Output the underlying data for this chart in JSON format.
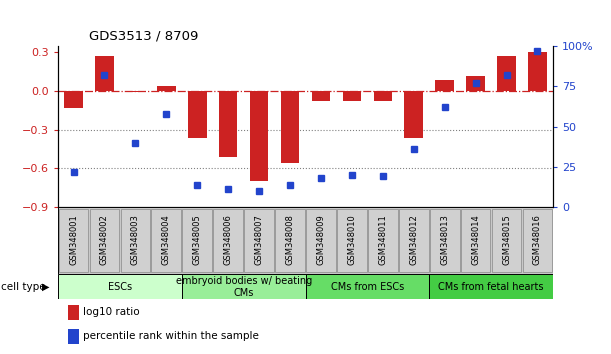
{
  "title": "GDS3513 / 8709",
  "samples": [
    "GSM348001",
    "GSM348002",
    "GSM348003",
    "GSM348004",
    "GSM348005",
    "GSM348006",
    "GSM348007",
    "GSM348008",
    "GSM348009",
    "GSM348010",
    "GSM348011",
    "GSM348012",
    "GSM348013",
    "GSM348014",
    "GSM348015",
    "GSM348016"
  ],
  "log10_ratio": [
    -0.13,
    0.27,
    -0.01,
    0.04,
    -0.36,
    -0.51,
    -0.7,
    -0.56,
    -0.08,
    -0.08,
    -0.08,
    -0.36,
    0.09,
    0.12,
    0.27,
    0.3
  ],
  "percentile_rank": [
    22,
    82,
    40,
    58,
    14,
    11,
    10,
    14,
    18,
    20,
    19,
    36,
    62,
    77,
    82,
    97
  ],
  "bar_color": "#cc2222",
  "dot_color": "#2244cc",
  "ylim_left": [
    -0.9,
    0.35
  ],
  "ylim_right": [
    0,
    100
  ],
  "yticks_left": [
    -0.9,
    -0.6,
    -0.3,
    0.0,
    0.3
  ],
  "yticks_right": [
    0,
    25,
    50,
    75,
    100
  ],
  "hline_y": 0.0,
  "dotted_lines": [
    -0.3,
    -0.6
  ],
  "cell_type_groups": [
    {
      "label": "ESCs",
      "start": 0,
      "end": 3,
      "color": "#ccffcc"
    },
    {
      "label": "embryoid bodies w/ beating\nCMs",
      "start": 4,
      "end": 7,
      "color": "#99ee99"
    },
    {
      "label": "CMs from ESCs",
      "start": 8,
      "end": 11,
      "color": "#66dd66"
    },
    {
      "label": "CMs from fetal hearts",
      "start": 12,
      "end": 15,
      "color": "#44cc44"
    }
  ],
  "legend_items": [
    {
      "label": "log10 ratio",
      "color": "#cc2222"
    },
    {
      "label": "percentile rank within the sample",
      "color": "#2244cc"
    }
  ],
  "cell_type_label": "cell type"
}
